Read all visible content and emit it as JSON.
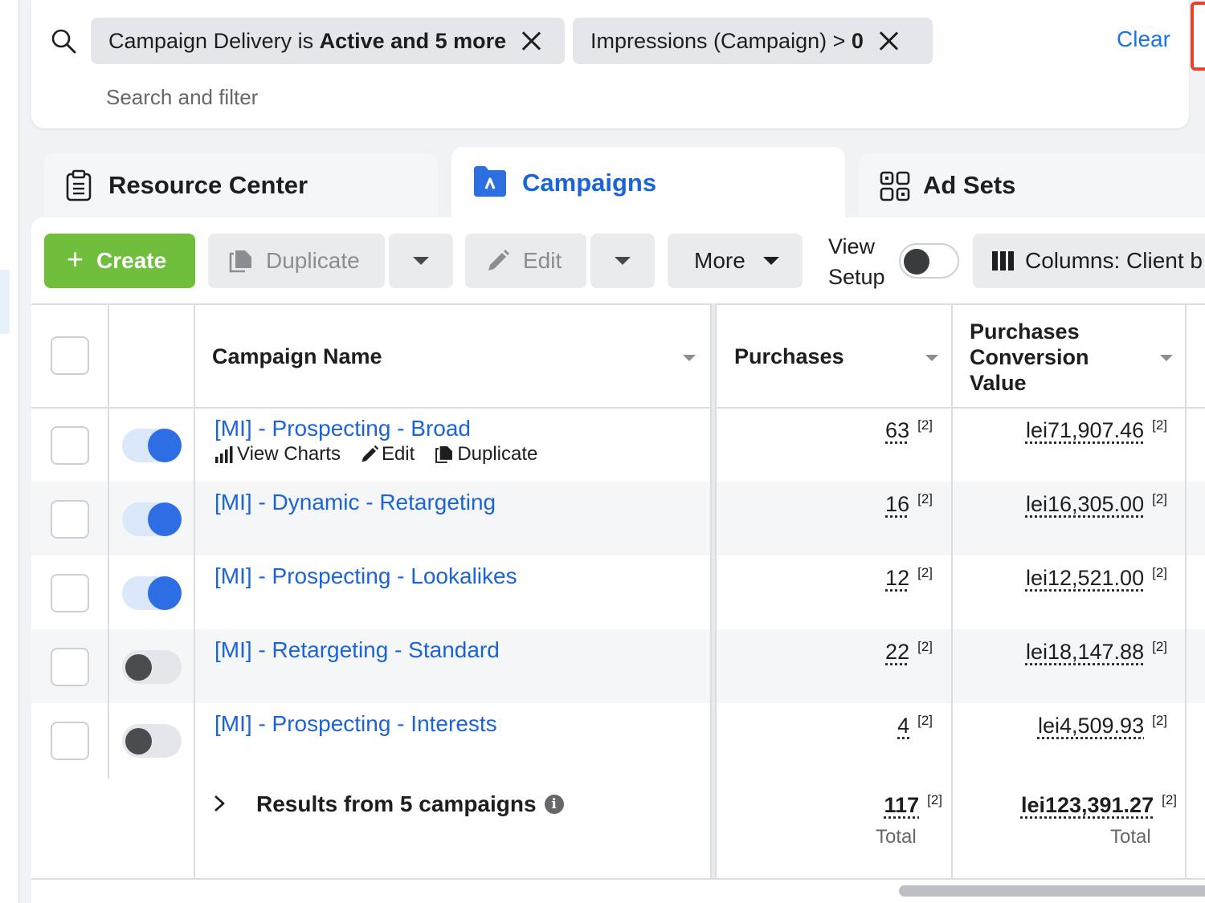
{
  "filters": {
    "chips": [
      {
        "prefix": "Campaign Delivery is ",
        "bold": "Active and 5 more"
      },
      {
        "prefix": "Impressions (Campaign) > ",
        "bold": "0"
      }
    ],
    "clear_label": "Clear",
    "search_placeholder": "Search and filter"
  },
  "tabs": [
    {
      "label": "Resource Center",
      "icon": "clipboard-icon"
    },
    {
      "label": "Campaigns",
      "icon": "folder-campaign-icon",
      "active": true
    },
    {
      "label": "Ad Sets",
      "icon": "grid-icon"
    }
  ],
  "toolbar": {
    "create_label": "Create",
    "duplicate_label": "Duplicate",
    "edit_label": "Edit",
    "more_label": "More",
    "view_setup_line1": "View",
    "view_setup_line2": "Setup",
    "columns_label": "Columns: Client b"
  },
  "table": {
    "headers": {
      "campaign_name": "Campaign Name",
      "purchases": "Purchases",
      "conversion_value_line1": "Purchases",
      "conversion_value_line2": "Conversion",
      "conversion_value_line3": "Value"
    },
    "row_actions": {
      "view_charts": "View Charts",
      "edit": "Edit",
      "duplicate": "Duplicate"
    },
    "rows": [
      {
        "name": "[MI] - Prospecting - Broad",
        "active": true,
        "purchases": "63",
        "value": "lei71,907.46",
        "note": "[2]"
      },
      {
        "name": "[MI] - Dynamic - Retargeting",
        "active": true,
        "purchases": "16",
        "value": "lei16,305.00",
        "note": "[2]"
      },
      {
        "name": "[MI] - Prospecting - Lookalikes",
        "active": true,
        "purchases": "12",
        "value": "lei12,521.00",
        "note": "[2]"
      },
      {
        "name": "[MI] - Retargeting - Standard",
        "active": false,
        "purchases": "22",
        "value": "lei18,147.88",
        "note": "[2]"
      },
      {
        "name": "[MI] - Prospecting - Interests",
        "active": false,
        "purchases": "4",
        "value": "lei4,509.93",
        "note": "[2]"
      }
    ],
    "summary": {
      "label": "Results from 5 campaigns",
      "purchases": "117",
      "value": "lei123,391.27",
      "note": "[2]",
      "total_label": "Total"
    }
  },
  "colors": {
    "accent": "#1b64d8",
    "create_green": "#6fbf3d",
    "toggle_on": "#2e6ee5"
  }
}
